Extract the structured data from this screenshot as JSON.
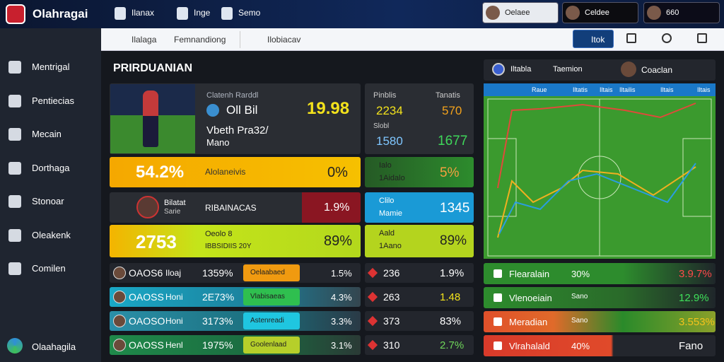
{
  "top_bar": {
    "brand": "Olahragai",
    "nav": [
      "Ilanax",
      "Inge",
      "Semo"
    ],
    "users": [
      "Oelaee",
      "Celdee",
      "660"
    ]
  },
  "toolbar": {
    "search": "Ilalaga",
    "dropdown": "Femnandiong",
    "filter": "Ilobiacav",
    "button": "Itok"
  },
  "sidebar": {
    "items": [
      "Mentrigal",
      "Pentiecias",
      "Mecain",
      "Dorthaga",
      "Stonoar",
      "Oleakenk",
      "Comilen"
    ],
    "footer": "Olaahagila"
  },
  "main": {
    "title": "PRIRDUANIAN",
    "player": {
      "label": "Clatenh Rarddl",
      "name": "Oll Bil",
      "score": "19.98",
      "line1": "Vbeth Pra32/",
      "line2": "Mano"
    },
    "banner1": {
      "value": "54.2%",
      "label": "Alolaneivis",
      "right": "0%"
    },
    "banner2": {
      "name": "Bilatat",
      "sub": "Sarie",
      "label": "RIBAINACAS",
      "value": "1.9%"
    },
    "banner3": {
      "value": "2753",
      "label": "Oeolo 8",
      "sub": "IBBSIDIIS 20Y",
      "right": "89%"
    },
    "rows": [
      {
        "code": "OAOS6",
        "name": "Iloaj",
        "value": "1359%",
        "tag": "Oelaabaed",
        "pct": "1.5%"
      },
      {
        "code": "OAOSS",
        "name": "Honi",
        "value": "2E73%",
        "tag": "Vlabisaeas",
        "pct": "4.3%"
      },
      {
        "code": "OAOSO",
        "name": "Honi",
        "value": "3173%",
        "tag": "Astenreadi",
        "pct": "3.3%"
      },
      {
        "code": "OAOSS",
        "name": "Henl",
        "value": "1975%",
        "tag": "Goolenlaad",
        "pct": "3.1%"
      }
    ]
  },
  "stats": {
    "headers": [
      "Pinblis",
      "Tanatis"
    ],
    "row1": [
      "2234",
      "570"
    ],
    "label": "Slobl",
    "row2": [
      "1580",
      "1677"
    ],
    "boxes": [
      {
        "a": "Ialo",
        "b": "1Aidalo",
        "v": "5%"
      },
      {
        "a": "Clilo",
        "b": "Mamie",
        "v": "1345"
      },
      {
        "a": "Aald",
        "b": "1Aano",
        "v": "89%"
      }
    ],
    "rows": [
      {
        "v": "236",
        "p": "1.9%"
      },
      {
        "v": "263",
        "p": "1.48"
      },
      {
        "v": "373",
        "p": "83%"
      },
      {
        "v": "310",
        "p": "2.7%"
      }
    ]
  },
  "field": {
    "header": [
      "Iltabla",
      "Taemion",
      "Coaclan"
    ],
    "tabs": [
      "Raue",
      "Iltatis",
      "Iltais",
      "Iltailis",
      "Iltais",
      "Iltais"
    ],
    "rows": [
      {
        "name": "Flearalain",
        "pct": "30%",
        "val": "3.9.7%"
      },
      {
        "name": "Vlenoeiain",
        "pct": "Sano",
        "val": "12.9%"
      },
      {
        "name": "Meradian",
        "pct": "Sano",
        "val": "3.553%"
      },
      {
        "name": "Vlrahalald",
        "pct": "40%",
        "val": "Fano"
      }
    ]
  }
}
